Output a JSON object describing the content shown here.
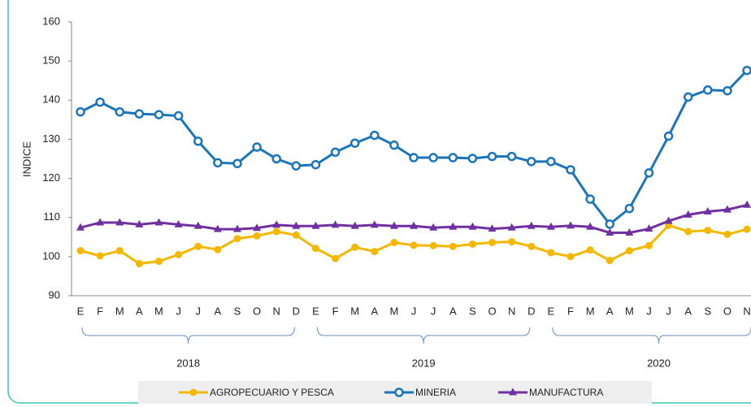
{
  "chart_data": {
    "type": "line",
    "y_label": "INDICE",
    "categories": [
      "E",
      "F",
      "M",
      "A",
      "M",
      "J",
      "J",
      "A",
      "S",
      "O",
      "N",
      "D",
      "E",
      "F",
      "M",
      "A",
      "M",
      "J",
      "J",
      "A",
      "S",
      "O",
      "N",
      "D",
      "E",
      "F",
      "M",
      "A",
      "M",
      "J",
      "J",
      "A",
      "S",
      "O",
      "N"
    ],
    "years": [
      "2018",
      "2019",
      "2020"
    ],
    "ylim": [
      90,
      160
    ],
    "yticks": [
      90,
      100,
      110,
      120,
      130,
      140,
      150,
      160
    ],
    "grid": false,
    "series": [
      {
        "name": "AGROPECUARIO Y PESCA",
        "color": "#f5b800",
        "marker": "circle",
        "values": [
          101.5,
          100.2,
          101.5,
          98.2,
          98.8,
          100.5,
          102.6,
          101.8,
          104.6,
          105.3,
          106.4,
          105.5,
          102.1,
          99.5,
          102.4,
          101.3,
          103.6,
          102.9,
          102.8,
          102.6,
          103.2,
          103.6,
          103.8,
          102.6,
          101,
          100,
          101.7,
          99,
          101.5,
          102.8,
          108,
          106.4,
          106.7,
          105.7,
          107
        ]
      },
      {
        "name": "MINERIA",
        "color": "#1a75bc",
        "marker": "open-circle",
        "values": [
          137,
          139.5,
          137,
          136.5,
          136.3,
          136,
          129.5,
          124,
          123.8,
          128,
          125,
          123.2,
          123.5,
          126.7,
          129,
          131,
          128.5,
          125.3,
          125.3,
          125.3,
          125.1,
          125.6,
          125.6,
          124.3,
          124.3,
          122.2,
          114.7,
          108.3,
          112.3,
          121.4,
          130.8,
          140.8,
          142.6,
          142.4,
          147.6
        ]
      },
      {
        "name": "MANUFACTURA",
        "color": "#7030a0",
        "marker": "triangle",
        "values": [
          107.4,
          108.7,
          108.7,
          108.2,
          108.7,
          108.2,
          107.8,
          107,
          107,
          107.3,
          108.1,
          107.8,
          107.8,
          108.1,
          107.8,
          108.1,
          107.8,
          107.8,
          107.4,
          107.6,
          107.6,
          107.1,
          107.4,
          107.8,
          107.6,
          107.9,
          107.6,
          106.1,
          106.1,
          107.1,
          109.1,
          110.7,
          111.5,
          112,
          113.2
        ]
      }
    ]
  }
}
